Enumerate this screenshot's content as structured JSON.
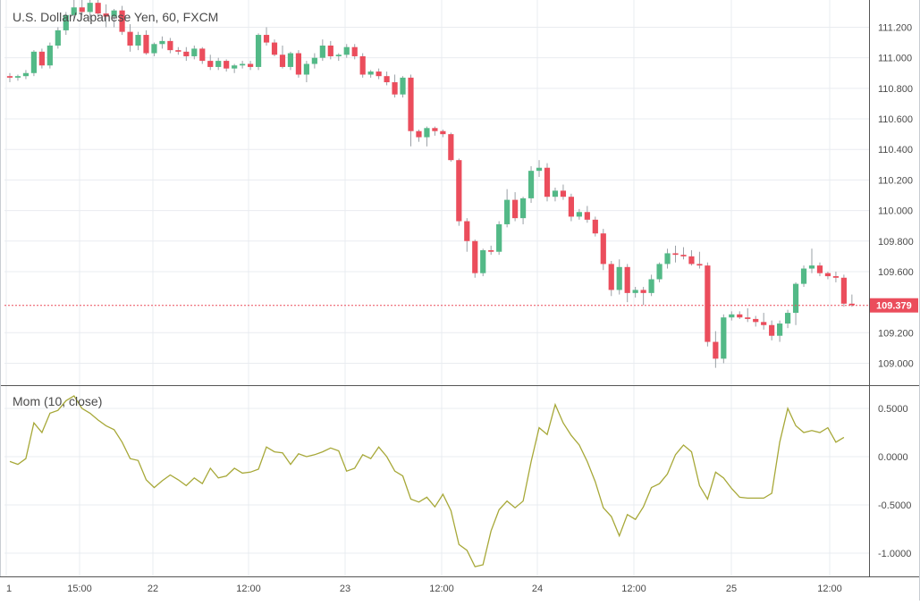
{
  "chart_data": [
    {
      "type": "candlestick",
      "title": "U.S. Dollar/Japanese Yen, 60, FXCM",
      "y_ticks": [
        "111.200",
        "111.000",
        "110.800",
        "110.600",
        "110.400",
        "110.200",
        "110.000",
        "109.800",
        "109.600",
        "109.200",
        "109.000"
      ],
      "ylim": [
        108.87,
        111.35
      ],
      "x_ticks": [
        "1",
        "15:00",
        "22",
        "12:00",
        "23",
        "12:00",
        "24",
        "12:00",
        "25",
        "12:00"
      ],
      "grid": true,
      "last_price": "109.379",
      "colors": {
        "up": "#53b987",
        "down": "#eb4d5c",
        "price_line": "#eb4d5c",
        "label_bg": "#eb4d5c"
      },
      "candles": [
        [
          110.88,
          110.9,
          110.84,
          110.87
        ],
        [
          110.87,
          110.89,
          110.85,
          110.88
        ],
        [
          110.88,
          110.92,
          110.86,
          110.9
        ],
        [
          110.9,
          111.05,
          110.88,
          111.04
        ],
        [
          111.04,
          111.06,
          110.93,
          110.95
        ],
        [
          110.95,
          111.1,
          110.93,
          111.08
        ],
        [
          111.08,
          111.2,
          111.06,
          111.18
        ],
        [
          111.18,
          111.3,
          111.15,
          111.28
        ],
        [
          111.28,
          111.38,
          111.25,
          111.33
        ],
        [
          111.33,
          111.4,
          111.28,
          111.3
        ],
        [
          111.3,
          111.42,
          111.25,
          111.36
        ],
        [
          111.36,
          111.4,
          111.27,
          111.29
        ],
        [
          111.29,
          111.35,
          111.2,
          111.27
        ],
        [
          111.27,
          111.32,
          111.2,
          111.31
        ],
        [
          111.31,
          111.34,
          111.15,
          111.17
        ],
        [
          111.17,
          111.22,
          111.04,
          111.08
        ],
        [
          111.08,
          111.17,
          111.05,
          111.15
        ],
        [
          111.15,
          111.18,
          111.02,
          111.03
        ],
        [
          111.03,
          111.1,
          111.01,
          111.09
        ],
        [
          111.09,
          111.14,
          111.06,
          111.11
        ],
        [
          111.11,
          111.13,
          111.03,
          111.05
        ],
        [
          111.05,
          111.07,
          111.02,
          111.04
        ],
        [
          111.04,
          111.07,
          110.98,
          111.01
        ],
        [
          111.01,
          111.08,
          110.99,
          111.06
        ],
        [
          111.06,
          111.07,
          110.96,
          110.98
        ],
        [
          110.98,
          111.02,
          110.92,
          110.94
        ],
        [
          110.94,
          111.0,
          110.92,
          110.98
        ],
        [
          110.98,
          110.99,
          110.91,
          110.93
        ],
        [
          110.93,
          110.96,
          110.9,
          110.95
        ],
        [
          110.95,
          110.98,
          110.93,
          110.96
        ],
        [
          110.96,
          110.98,
          110.92,
          110.94
        ],
        [
          110.94,
          111.16,
          110.92,
          111.15
        ],
        [
          111.15,
          111.2,
          111.08,
          111.1
        ],
        [
          111.1,
          111.12,
          111.01,
          111.02
        ],
        [
          111.02,
          111.08,
          110.93,
          110.94
        ],
        [
          110.94,
          111.04,
          110.92,
          111.03
        ],
        [
          111.03,
          111.05,
          110.87,
          110.89
        ],
        [
          110.89,
          110.98,
          110.84,
          110.96
        ],
        [
          110.96,
          111.03,
          110.93,
          111.0
        ],
        [
          111.0,
          111.12,
          110.98,
          111.08
        ],
        [
          111.08,
          111.11,
          110.99,
          111.01
        ],
        [
          111.01,
          111.03,
          110.98,
          111.02
        ],
        [
          111.02,
          111.09,
          111.0,
          111.07
        ],
        [
          111.07,
          111.09,
          110.99,
          111.01
        ],
        [
          111.01,
          111.03,
          110.87,
          110.89
        ],
        [
          110.89,
          110.92,
          110.87,
          110.91
        ],
        [
          110.91,
          110.93,
          110.86,
          110.88
        ],
        [
          110.88,
          110.91,
          110.82,
          110.84
        ],
        [
          110.84,
          110.89,
          110.74,
          110.76
        ],
        [
          110.76,
          110.88,
          110.74,
          110.87
        ],
        [
          110.87,
          110.89,
          110.42,
          110.52
        ],
        [
          110.52,
          110.53,
          110.45,
          110.48
        ],
        [
          110.48,
          110.55,
          110.42,
          110.54
        ],
        [
          110.54,
          110.55,
          110.49,
          110.52
        ],
        [
          110.52,
          110.53,
          110.48,
          110.5
        ],
        [
          110.5,
          110.51,
          110.32,
          110.33
        ],
        [
          110.33,
          110.34,
          109.9,
          109.93
        ],
        [
          109.93,
          109.95,
          109.73,
          109.8
        ],
        [
          109.8,
          109.81,
          109.56,
          109.59
        ],
        [
          109.59,
          109.75,
          109.57,
          109.74
        ],
        [
          109.74,
          109.77,
          109.71,
          109.73
        ],
        [
          109.73,
          109.93,
          109.71,
          109.91
        ],
        [
          109.91,
          110.14,
          109.89,
          110.07
        ],
        [
          110.07,
          110.12,
          109.93,
          109.95
        ],
        [
          109.95,
          110.09,
          109.91,
          110.08
        ],
        [
          110.08,
          110.29,
          110.05,
          110.26
        ],
        [
          110.26,
          110.33,
          110.22,
          110.28
        ],
        [
          110.28,
          110.31,
          110.06,
          110.09
        ],
        [
          110.09,
          110.15,
          110.06,
          110.13
        ],
        [
          110.13,
          110.17,
          110.07,
          110.09
        ],
        [
          110.09,
          110.11,
          109.93,
          109.96
        ],
        [
          109.96,
          110.01,
          109.94,
          109.99
        ],
        [
          109.99,
          110.03,
          109.92,
          109.94
        ],
        [
          109.94,
          109.96,
          109.83,
          109.85
        ],
        [
          109.85,
          109.88,
          109.61,
          109.65
        ],
        [
          109.65,
          109.67,
          109.44,
          109.48
        ],
        [
          109.48,
          109.68,
          109.45,
          109.63
        ],
        [
          109.63,
          109.65,
          109.4,
          109.46
        ],
        [
          109.46,
          109.5,
          109.43,
          109.48
        ],
        [
          109.48,
          109.5,
          109.38,
          109.46
        ],
        [
          109.46,
          109.58,
          109.44,
          109.55
        ],
        [
          109.55,
          109.66,
          109.53,
          109.65
        ],
        [
          109.65,
          109.75,
          109.62,
          109.72
        ],
        [
          109.72,
          109.77,
          109.66,
          109.71
        ],
        [
          109.71,
          109.76,
          109.68,
          109.7
        ],
        [
          109.7,
          109.74,
          109.64,
          109.65
        ],
        [
          109.65,
          109.73,
          109.62,
          109.64
        ],
        [
          109.64,
          109.66,
          109.11,
          109.14
        ],
        [
          109.14,
          109.21,
          108.97,
          109.03
        ],
        [
          109.03,
          109.32,
          109.0,
          109.3
        ],
        [
          109.3,
          109.34,
          109.28,
          109.32
        ],
        [
          109.32,
          109.34,
          109.29,
          109.3
        ],
        [
          109.3,
          109.36,
          109.27,
          109.29
        ],
        [
          109.29,
          109.31,
          109.24,
          109.27
        ],
        [
          109.27,
          109.33,
          109.22,
          109.25
        ],
        [
          109.25,
          109.28,
          109.15,
          109.18
        ],
        [
          109.18,
          109.28,
          109.14,
          109.26
        ],
        [
          109.26,
          109.35,
          109.23,
          109.33
        ],
        [
          109.33,
          109.53,
          109.25,
          109.52
        ],
        [
          109.52,
          109.64,
          109.5,
          109.62
        ],
        [
          109.62,
          109.75,
          109.59,
          109.64
        ],
        [
          109.64,
          109.66,
          109.57,
          109.59
        ],
        [
          109.59,
          109.6,
          109.55,
          109.57
        ],
        [
          109.57,
          109.6,
          109.53,
          109.56
        ],
        [
          109.56,
          109.58,
          109.37,
          109.39
        ],
        [
          109.39,
          109.45,
          109.37,
          109.38
        ]
      ]
    },
    {
      "type": "line",
      "title": "Mom (10, close)",
      "y_ticks": [
        "0.5000",
        "0.0000",
        "-0.5000",
        "-1.0000"
      ],
      "ylim": [
        -1.2,
        0.73
      ],
      "line_color": "#a7a838",
      "values": [
        -0.05,
        -0.08,
        -0.02,
        0.35,
        0.25,
        0.45,
        0.48,
        0.58,
        0.63,
        0.5,
        0.45,
        0.38,
        0.32,
        0.28,
        0.15,
        -0.02,
        -0.04,
        -0.24,
        -0.32,
        -0.25,
        -0.19,
        -0.24,
        -0.3,
        -0.22,
        -0.28,
        -0.12,
        -0.22,
        -0.2,
        -0.12,
        -0.17,
        -0.16,
        -0.13,
        0.1,
        0.05,
        0.04,
        -0.08,
        0.03,
        0.0,
        0.02,
        0.05,
        0.09,
        0.06,
        -0.15,
        -0.12,
        0.02,
        -0.02,
        0.1,
        0.0,
        -0.15,
        -0.2,
        -0.44,
        -0.47,
        -0.42,
        -0.52,
        -0.39,
        -0.56,
        -0.91,
        -0.97,
        -1.14,
        -1.12,
        -0.77,
        -0.55,
        -0.46,
        -0.53,
        -0.46,
        -0.05,
        0.3,
        0.23,
        0.54,
        0.35,
        0.22,
        0.12,
        -0.05,
        -0.26,
        -0.53,
        -0.62,
        -0.82,
        -0.6,
        -0.65,
        -0.52,
        -0.32,
        -0.28,
        -0.18,
        0.02,
        0.12,
        0.05,
        -0.3,
        -0.44,
        -0.16,
        -0.22,
        -0.33,
        -0.42,
        -0.43,
        -0.43,
        -0.43,
        -0.38,
        0.15,
        0.5,
        0.32,
        0.25,
        0.27,
        0.25,
        0.3,
        0.15,
        0.2
      ]
    }
  ]
}
